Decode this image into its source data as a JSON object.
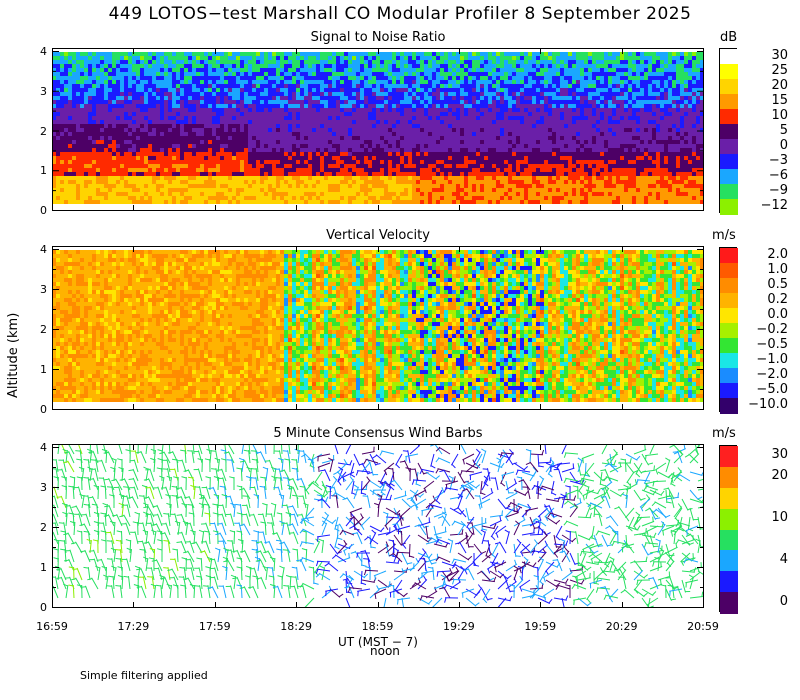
{
  "title": "449 LOTOS−test Marshall CO Modular Profiler  8 September 2025",
  "ylabel": "Altitude (km)",
  "xlabel": "UT  (MST − 7)",
  "xlabel_sub": "noon",
  "footnote": "Simple filtering applied",
  "x_ticks": [
    "16:59",
    "17:29",
    "17:59",
    "18:29",
    "18:59",
    "19:29",
    "19:59",
    "20:29",
    "20:59"
  ],
  "y_ticks": [
    "0",
    "1",
    "2",
    "3",
    "4"
  ],
  "panels": {
    "snr": {
      "title": "Signal to Noise Ratio",
      "unit": "dB",
      "colorbar": [
        {
          "label": "30",
          "color": "#ffffff"
        },
        {
          "label": "25",
          "color": "#ffff00"
        },
        {
          "label": "20",
          "color": "#ffd400"
        },
        {
          "label": "15",
          "color": "#ff9a00"
        },
        {
          "label": "10",
          "color": "#ff2a00"
        },
        {
          "label": "5",
          "color": "#4d0066"
        },
        {
          "label": "0",
          "color": "#6a1fa8"
        },
        {
          "label": "−3",
          "color": "#1a1aff"
        },
        {
          "label": "−6",
          "color": "#1aa7ff"
        },
        {
          "label": "−9",
          "color": "#26e060"
        },
        {
          "label": "−12",
          "color": "#8cf000"
        }
      ]
    },
    "vv": {
      "title": "Vertical Velocity",
      "unit": "m/s",
      "colorbar": [
        {
          "label": "2.0",
          "color": "#ff1a1a"
        },
        {
          "label": "1.0",
          "color": "#ff5a00"
        },
        {
          "label": "0.5",
          "color": "#ff8c00"
        },
        {
          "label": "0.2",
          "color": "#ffb300"
        },
        {
          "label": "0.0",
          "color": "#ffe600"
        },
        {
          "label": "−0.2",
          "color": "#a6f000"
        },
        {
          "label": "−0.5",
          "color": "#33e633"
        },
        {
          "label": "−1.0",
          "color": "#1ae6e6"
        },
        {
          "label": "−2.0",
          "color": "#1a8cff"
        },
        {
          "label": "−5.0",
          "color": "#1a1aff"
        },
        {
          "label": "−10.0",
          "color": "#33006b"
        }
      ]
    },
    "wind": {
      "title": "5 Minute Consensus Wind Barbs",
      "unit": "m/s",
      "colorbar": [
        {
          "label": "30",
          "color": "#ff2020"
        },
        {
          "label": "20",
          "color": "#ff8c00"
        },
        {
          "label": "",
          "color": "#ffd400"
        },
        {
          "label": "10",
          "color": "#8cf000"
        },
        {
          "label": "",
          "color": "#26e060"
        },
        {
          "label": "4",
          "color": "#1aa7ff"
        },
        {
          "label": "",
          "color": "#1a1aff"
        },
        {
          "label": "0",
          "color": "#4d0066"
        }
      ]
    }
  },
  "chart_data": [
    {
      "type": "heatmap",
      "title": "Signal to Noise Ratio",
      "unit": "dB",
      "x_range": [
        "16:59",
        "20:59"
      ],
      "ylim": [
        0,
        4
      ],
      "ylabel": "Altitude (km)",
      "color_levels": [
        30,
        25,
        20,
        15,
        10,
        5,
        0,
        -3,
        -6,
        -9,
        -12
      ],
      "layers": [
        {
          "altitude_km": [
            0.3,
            1.0
          ],
          "snr_db": 15
        },
        {
          "altitude_km": [
            1.0,
            2.0
          ],
          "snr_db": 8
        },
        {
          "altitude_km": [
            2.0,
            3.0
          ],
          "snr_db": 2
        },
        {
          "altitude_km": [
            3.0,
            4.0
          ],
          "snr_db": -4
        }
      ]
    },
    {
      "type": "heatmap",
      "title": "Vertical Velocity",
      "unit": "m/s",
      "x_range": [
        "16:59",
        "20:59"
      ],
      "ylim": [
        0,
        4
      ],
      "color_levels": [
        2.0,
        1.0,
        0.5,
        0.2,
        0.0,
        -0.2,
        -0.5,
        -1.0,
        -2.0,
        -5.0,
        -10.0
      ],
      "periods": [
        {
          "time": [
            "16:59",
            "18:15"
          ],
          "vv_ms": 0.4
        },
        {
          "time": [
            "18:15",
            "20:59"
          ],
          "vv_ms": -0.3
        }
      ]
    },
    {
      "type": "scatter",
      "title": "5 Minute Consensus Wind Barbs",
      "unit": "m/s",
      "x_range": [
        "16:59",
        "20:59"
      ],
      "ylim": [
        0,
        4
      ],
      "color_levels": [
        30,
        20,
        10,
        4,
        0
      ],
      "periods": [
        {
          "time": [
            "16:59",
            "18:00"
          ],
          "speed_ms": 8
        },
        {
          "time": [
            "18:00",
            "18:40"
          ],
          "speed_ms": 5
        },
        {
          "time": [
            "18:40",
            "20:10"
          ],
          "speed_ms": 2
        },
        {
          "time": [
            "20:10",
            "20:59"
          ],
          "speed_ms": 6
        }
      ]
    }
  ]
}
